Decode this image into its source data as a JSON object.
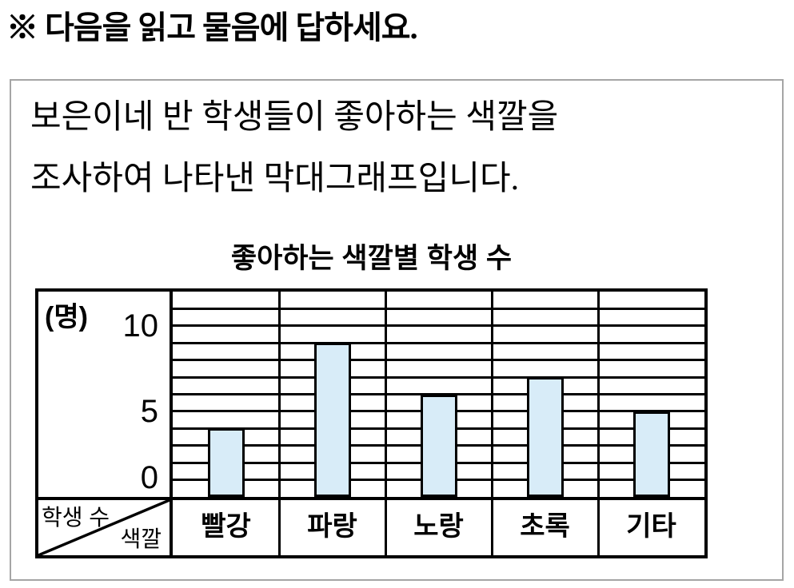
{
  "page": {
    "instruction": "※ 다음을 읽고 물음에 답하세요."
  },
  "problem_box": {
    "description_line1": "보은이네 반 학생들이 좋아하는 색깔을",
    "description_line2": "조사하여 나타낸 막대그래프입니다."
  },
  "chart_data": {
    "type": "bar",
    "title": "좋아하는 색깔별 학생 수",
    "unit_label": "(명)",
    "xlabel": "색깔",
    "ylabel": "학생 수",
    "categories": [
      "빨강",
      "파랑",
      "노랑",
      "초록",
      "기타"
    ],
    "values": [
      4,
      9,
      6,
      7,
      5
    ],
    "yticks": [
      0,
      5,
      10
    ],
    "ylim": [
      0,
      12
    ],
    "grid": "horizontal lines every 1 unit",
    "legend": "none",
    "bar_fill_color": "#d8ecf8",
    "bar_border_color": "#000000",
    "frame_color": "#000000"
  }
}
